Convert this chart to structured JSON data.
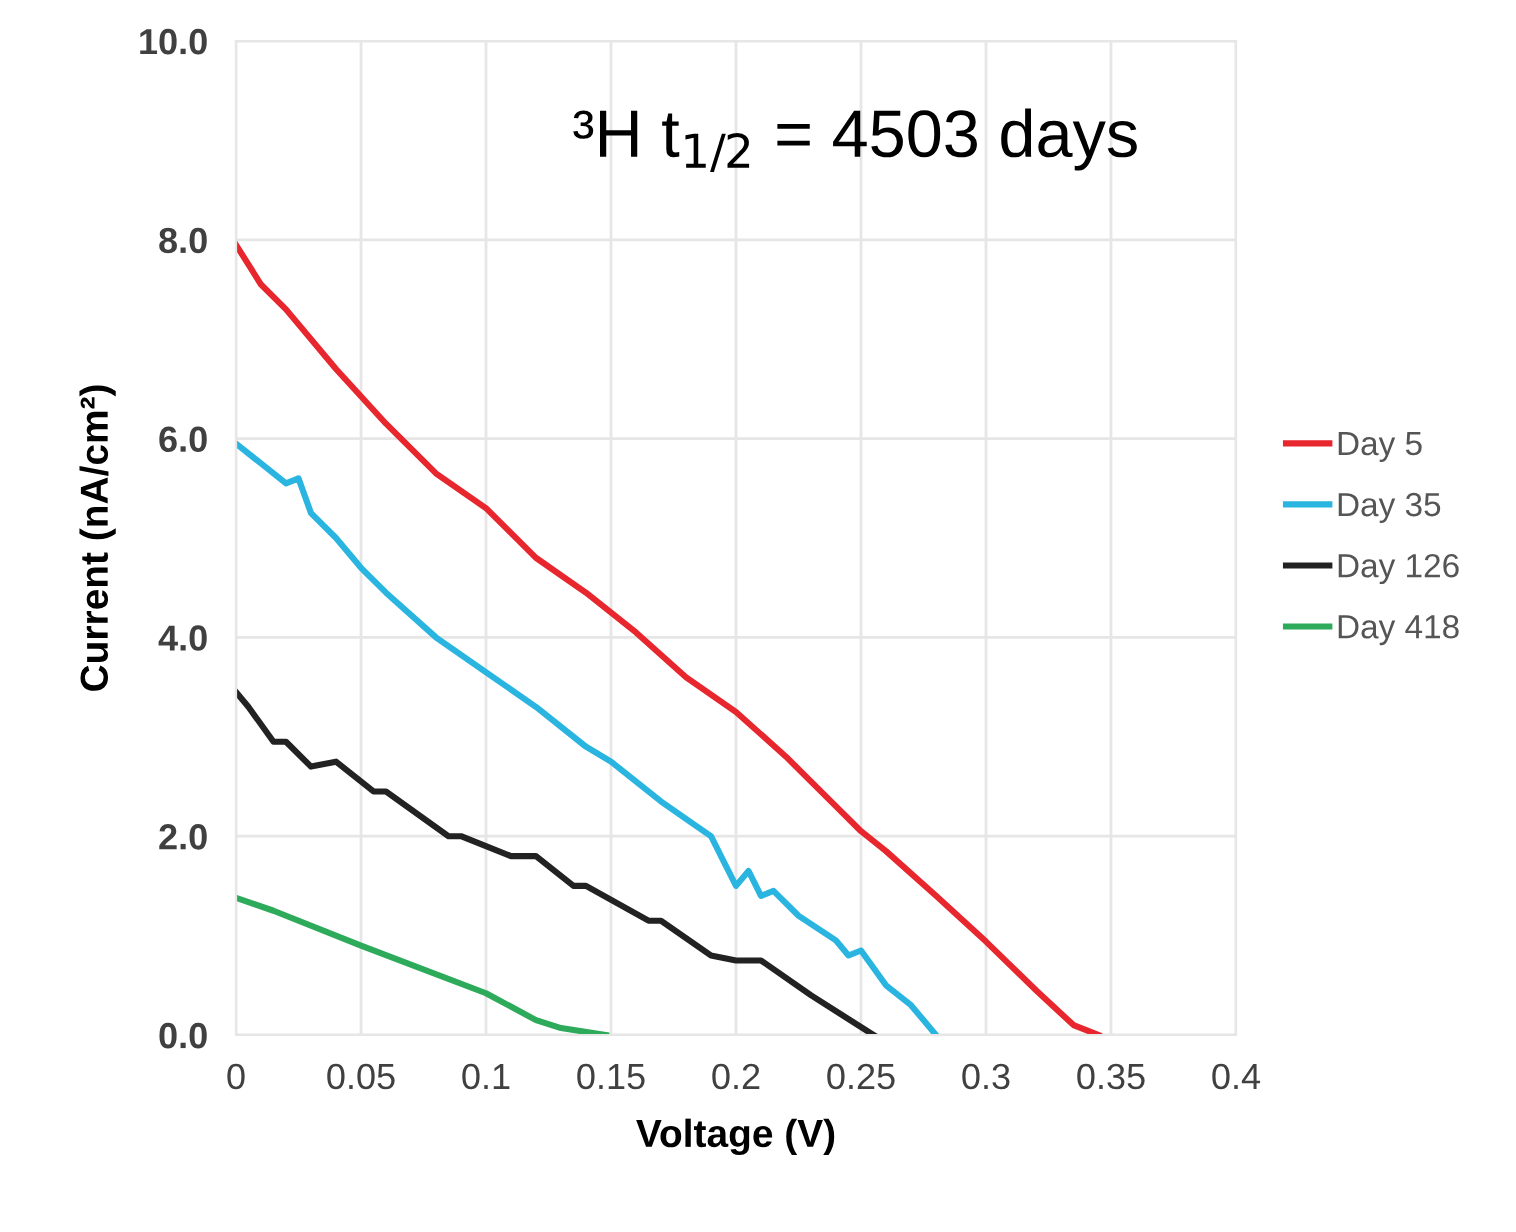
{
  "chart_data": {
    "type": "line",
    "xlabel": "Voltage (V)",
    "ylabel": "Current (nA/cm²)",
    "annotations": [
      "³H t$_{1/2}$ = 4503 days"
    ],
    "xlim": [
      0,
      0.4
    ],
    "xticks": [
      {
        "value": 0,
        "label": "0"
      },
      0.05,
      0.1,
      0.15,
      0.2,
      0.25,
      0.3,
      0.35,
      0.4
    ],
    "ylim": [
      0,
      10
    ],
    "yticks": [
      {
        "value": 0,
        "label": "0.0"
      },
      {
        "value": 2,
        "label": "2.0"
      },
      {
        "value": 4,
        "label": "4.0"
      },
      {
        "value": 6,
        "label": "6.0"
      },
      {
        "value": 8,
        "label": "8.0"
      },
      {
        "value": 10,
        "label": "10.0"
      }
    ],
    "grid": true,
    "legend": "right",
    "marker": "none",
    "line_style": "solid",
    "series": [
      {
        "name": "Day 5",
        "color": "#e8262d",
        "x": [
          0,
          0.01,
          0.02,
          0.04,
          0.06,
          0.08,
          0.1,
          0.12,
          0.14,
          0.16,
          0.18,
          0.2,
          0.22,
          0.24,
          0.25,
          0.26,
          0.28,
          0.3,
          0.32,
          0.335,
          0.345
        ],
        "values": [
          7.95,
          7.55,
          7.3,
          6.7,
          6.15,
          5.65,
          5.3,
          4.8,
          4.45,
          4.05,
          3.6,
          3.25,
          2.8,
          2.3,
          2.05,
          1.85,
          1.4,
          0.94,
          0.45,
          0.1,
          0
        ]
      },
      {
        "name": "Day 35",
        "color": "#29b5e0",
        "x": [
          0,
          0.01,
          0.02,
          0.025,
          0.03,
          0.04,
          0.05,
          0.06,
          0.08,
          0.1,
          0.12,
          0.14,
          0.15,
          0.17,
          0.19,
          0.195,
          0.2,
          0.205,
          0.21,
          0.215,
          0.225,
          0.24,
          0.245,
          0.25,
          0.26,
          0.27,
          0.28
        ],
        "values": [
          5.95,
          5.75,
          5.55,
          5.6,
          5.25,
          5.0,
          4.7,
          4.45,
          4.0,
          3.65,
          3.3,
          2.9,
          2.75,
          2.35,
          2.0,
          1.75,
          1.5,
          1.65,
          1.4,
          1.45,
          1.2,
          0.95,
          0.8,
          0.85,
          0.5,
          0.3,
          0
        ]
      },
      {
        "name": "Day 126",
        "color": "#222222",
        "x": [
          0,
          0.005,
          0.015,
          0.02,
          0.03,
          0.04,
          0.055,
          0.06,
          0.085,
          0.09,
          0.11,
          0.12,
          0.135,
          0.14,
          0.165,
          0.17,
          0.19,
          0.2,
          0.21,
          0.23,
          0.255
        ],
        "values": [
          3.45,
          3.3,
          2.95,
          2.95,
          2.7,
          2.75,
          2.45,
          2.45,
          2.0,
          2.0,
          1.8,
          1.8,
          1.5,
          1.5,
          1.15,
          1.15,
          0.8,
          0.75,
          0.75,
          0.4,
          0
        ]
      },
      {
        "name": "Day 418",
        "color": "#2daa5a",
        "x": [
          0,
          0.015,
          0.05,
          0.1,
          0.12,
          0.13,
          0.148
        ],
        "values": [
          1.38,
          1.25,
          0.9,
          0.42,
          0.15,
          0.07,
          0
        ]
      }
    ]
  }
}
